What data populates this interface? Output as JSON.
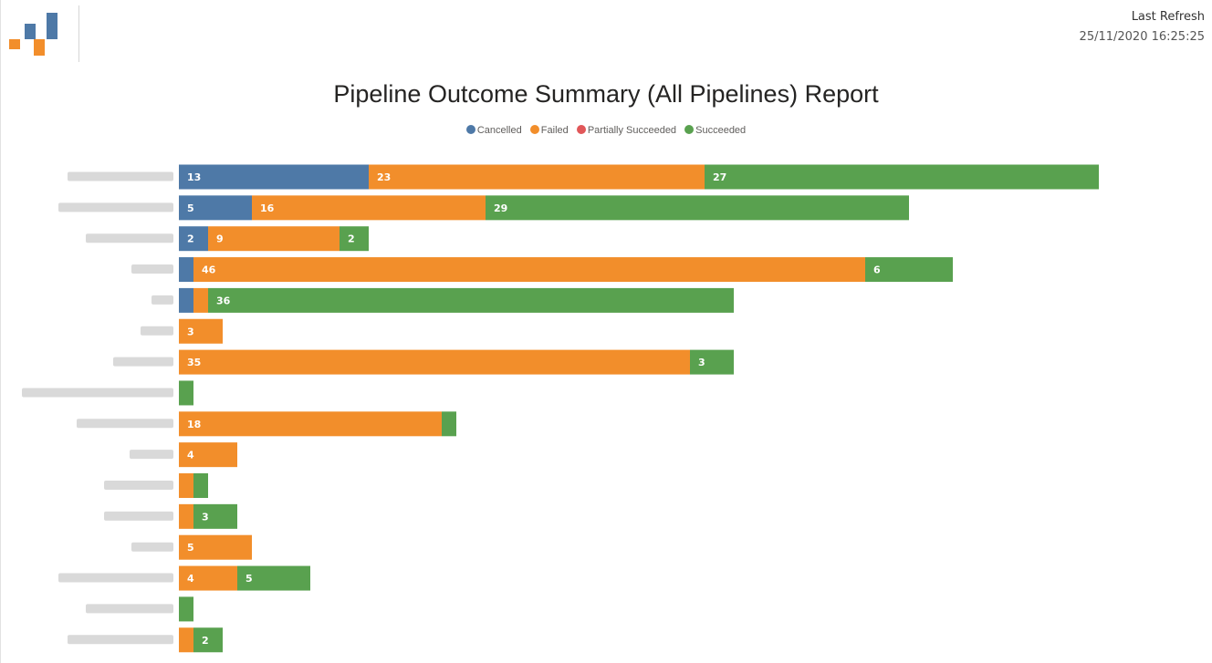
{
  "header": {
    "refresh_label": "Last Refresh",
    "refresh_time": "25/11/2020 16:25:25"
  },
  "logo": {
    "colors": [
      "#4e79a7",
      "#f28e2b"
    ]
  },
  "chart_data": {
    "type": "bar",
    "orientation": "horizontal",
    "stacked": true,
    "title": "Pipeline Outcome Summary (All Pipelines) Report",
    "legend_position": "top",
    "categories": [
      "",
      "",
      "",
      "",
      "",
      "",
      "",
      "",
      "",
      "",
      "",
      "",
      "",
      "",
      "",
      ""
    ],
    "series": [
      {
        "name": "Cancelled",
        "color": "#4e79a7",
        "values": [
          13,
          5,
          2,
          1,
          1,
          0,
          0,
          0,
          0,
          0,
          0,
          0,
          0,
          0,
          0,
          0
        ]
      },
      {
        "name": "Failed",
        "color": "#f28e2b",
        "values": [
          23,
          16,
          9,
          46,
          1,
          3,
          35,
          0,
          18,
          4,
          1,
          1,
          5,
          4,
          0,
          1
        ]
      },
      {
        "name": "Partially Succeeded",
        "color": "#e15759",
        "values": [
          0,
          0,
          0,
          0,
          0,
          0,
          0,
          0,
          0,
          0,
          0,
          0,
          0,
          0,
          0,
          0
        ]
      },
      {
        "name": "Succeeded",
        "color": "#59a14f",
        "values": [
          27,
          29,
          2,
          6,
          36,
          0,
          3,
          1,
          1,
          0,
          1,
          3,
          0,
          5,
          1,
          2
        ]
      }
    ],
    "grid": false
  }
}
